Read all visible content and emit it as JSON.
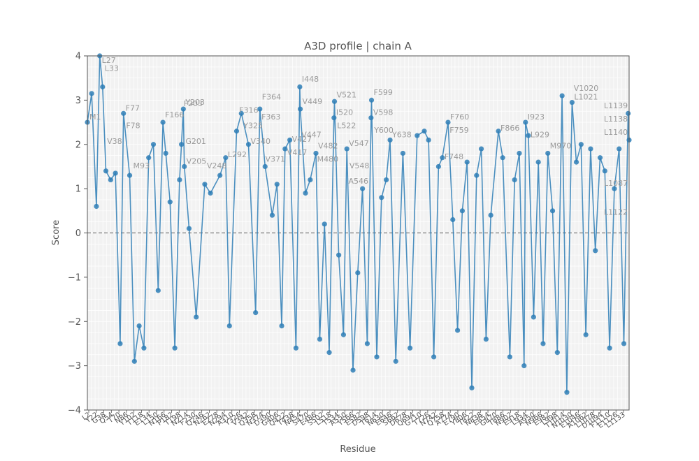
{
  "chart_data": {
    "type": "line",
    "title": "A3D profile | chain A",
    "xlabel": "Residue",
    "ylabel": "Score",
    "ylim": [
      -4,
      4
    ],
    "yticks": [
      -4,
      -3,
      -2,
      -1,
      0,
      1,
      2,
      3,
      4
    ],
    "xlim": [
      1,
      1141
    ],
    "grid": true,
    "reference_line": 0,
    "colors": {
      "series": "#2e7eb6",
      "plot_bg": "#f2f2f2",
      "label": "#9a9a9a"
    },
    "series": [
      {
        "x": [
          1,
          10,
          20,
          27,
          33,
          40,
          50,
          60,
          70,
          77,
          90,
          100,
          110,
          120,
          130,
          140,
          150,
          160,
          166,
          175,
          185,
          195,
          199,
          203,
          205,
          215,
          230,
          248,
          260,
          280,
          292,
          300,
          315,
          325,
          340,
          355,
          364,
          375,
          390,
          400,
          410,
          417,
          427,
          440,
          448,
          449,
          460,
          470,
          482,
          490,
          500,
          510,
          520,
          521,
          530,
          540,
          547,
          560,
          570,
          580,
          590,
          598,
          599,
          610,
          620,
          630,
          638,
          650,
          665,
          680,
          695,
          710,
          719,
          730,
          740,
          748,
          760,
          770,
          780,
          790,
          800,
          810,
          820,
          830,
          840,
          850,
          866,
          875,
          890,
          900,
          910,
          920,
          923,
          929,
          940,
          950,
          960,
          970,
          980,
          990,
          1000,
          1010,
          1021,
          1030,
          1040,
          1050,
          1060,
          1070,
          1080,
          1090,
          1100,
          1110,
          1120,
          1130,
          1139,
          1141
        ],
        "y": [
          2.5,
          3.15,
          0.6,
          4.0,
          3.3,
          1.4,
          1.2,
          1.35,
          -2.5,
          2.7,
          1.3,
          -2.9,
          -2.1,
          -2.6,
          1.7,
          2.0,
          -1.3,
          2.5,
          1.8,
          0.7,
          -2.6,
          1.2,
          2.0,
          2.8,
          1.5,
          0.1,
          -1.9,
          1.1,
          0.9,
          1.3,
          1.7,
          -2.1,
          2.3,
          2.7,
          2.0,
          -1.8,
          2.8,
          1.5,
          0.4,
          1.1,
          -2.1,
          1.9,
          2.1,
          -2.6,
          3.3,
          2.8,
          0.9,
          1.2,
          1.8,
          -2.4,
          0.2,
          -2.7,
          2.6,
          2.97,
          -0.5,
          -2.3,
          1.9,
          -3.1,
          -0.9,
          1.0,
          -2.5,
          2.6,
          3.0,
          -2.8,
          0.8,
          1.2,
          2.1,
          -2.9,
          1.8,
          -2.6,
          2.2,
          2.3,
          2.1,
          -2.8,
          1.5,
          1.7,
          2.5,
          0.3,
          -2.2,
          0.5,
          1.6,
          -3.5,
          1.3,
          1.9,
          -2.4,
          0.4,
          2.3,
          1.7,
          -2.8,
          1.2,
          1.8,
          -3.0,
          2.5,
          2.2,
          -1.9,
          1.6,
          -2.5,
          1.8,
          0.5,
          -2.7,
          3.1,
          -3.6,
          2.95,
          1.6,
          2.0,
          -2.3,
          1.9,
          -0.4,
          1.7,
          1.4,
          -2.6,
          1.0,
          1.9,
          -2.5,
          2.7,
          2.1
        ]
      }
    ],
    "point_labels": [
      {
        "text": "L27",
        "x": 27,
        "y": 4.0
      },
      {
        "text": "L33",
        "x": 33,
        "y": 3.6
      },
      {
        "text": "M1",
        "x": 1,
        "y": 2.5
      },
      {
        "text": "F77",
        "x": 77,
        "y": 2.7
      },
      {
        "text": "F78",
        "x": 78,
        "y": 2.3
      },
      {
        "text": "V38",
        "x": 38,
        "y": 1.95
      },
      {
        "text": "M93",
        "x": 93,
        "y": 1.4
      },
      {
        "text": "F166",
        "x": 160,
        "y": 2.55
      },
      {
        "text": "F203",
        "x": 199,
        "y": 2.8
      },
      {
        "text": "Y203",
        "x": 203,
        "y": 2.83
      },
      {
        "text": "G201",
        "x": 203,
        "y": 1.95
      },
      {
        "text": "V205",
        "x": 205,
        "y": 1.5
      },
      {
        "text": "V248",
        "x": 248,
        "y": 1.4
      },
      {
        "text": "L292",
        "x": 292,
        "y": 1.65
      },
      {
        "text": "F316",
        "x": 316,
        "y": 2.65
      },
      {
        "text": "F364",
        "x": 364,
        "y": 2.95
      },
      {
        "text": "F363",
        "x": 363,
        "y": 2.5
      },
      {
        "text": "Y325",
        "x": 325,
        "y": 2.3
      },
      {
        "text": "V340",
        "x": 340,
        "y": 1.95
      },
      {
        "text": "V371",
        "x": 371,
        "y": 1.55
      },
      {
        "text": "I448",
        "x": 448,
        "y": 3.35
      },
      {
        "text": "V449",
        "x": 449,
        "y": 2.85
      },
      {
        "text": "V447",
        "x": 447,
        "y": 2.1
      },
      {
        "text": "V427",
        "x": 427,
        "y": 2.0
      },
      {
        "text": "V417",
        "x": 417,
        "y": 1.7
      },
      {
        "text": "V482",
        "x": 482,
        "y": 1.85
      },
      {
        "text": "M480",
        "x": 480,
        "y": 1.55
      },
      {
        "text": "V521",
        "x": 521,
        "y": 3.0
      },
      {
        "text": "I520",
        "x": 520,
        "y": 2.6
      },
      {
        "text": "L522",
        "x": 522,
        "y": 2.3
      },
      {
        "text": "V547",
        "x": 547,
        "y": 1.9
      },
      {
        "text": "V548",
        "x": 548,
        "y": 1.4
      },
      {
        "text": "A546",
        "x": 546,
        "y": 1.05
      },
      {
        "text": "F599",
        "x": 599,
        "y": 3.05
      },
      {
        "text": "V598",
        "x": 598,
        "y": 2.6
      },
      {
        "text": "Y600",
        "x": 600,
        "y": 2.2
      },
      {
        "text": "Y638",
        "x": 638,
        "y": 2.1
      },
      {
        "text": "F760",
        "x": 760,
        "y": 2.5
      },
      {
        "text": "F759",
        "x": 759,
        "y": 2.2
      },
      {
        "text": "F748",
        "x": 748,
        "y": 1.6
      },
      {
        "text": "F866",
        "x": 866,
        "y": 2.25
      },
      {
        "text": "I923",
        "x": 923,
        "y": 2.5
      },
      {
        "text": "L929",
        "x": 929,
        "y": 2.1
      },
      {
        "text": "M970",
        "x": 970,
        "y": 1.85
      },
      {
        "text": "V1020",
        "x": 1020,
        "y": 3.15
      },
      {
        "text": "L1021",
        "x": 1021,
        "y": 2.95
      },
      {
        "text": "L1139",
        "x": 1139,
        "y": 2.75
      },
      {
        "text": "L1138",
        "x": 1138,
        "y": 2.45
      },
      {
        "text": "L1140",
        "x": 1140,
        "y": 2.15
      },
      {
        "text": "L1087",
        "x": 1087,
        "y": 1.0
      },
      {
        "text": "L1122",
        "x": 1122,
        "y": 0.35
      }
    ],
    "x_tick_labels": [
      "L2",
      "Y22",
      "G38",
      "Q54",
      "T70",
      "N86",
      "Y102",
      "T118",
      "E134",
      "L150",
      "N166",
      "P182",
      "T198",
      "N214",
      "F230",
      "Q246",
      "N262",
      "E278",
      "N294",
      "A310",
      "Y326",
      "V342",
      "Q358",
      "N374",
      "D390",
      "G406",
      "Q422",
      "T438",
      "N454",
      "S470",
      "E486",
      "S502",
      "L518",
      "T534",
      "A550",
      "Y566",
      "E582",
      "D598",
      "T614",
      "N630",
      "E646",
      "S662",
      "D678",
      "Q694",
      "G710",
      "T726",
      "N742",
      "Q758",
      "A774",
      "E790",
      "Y806",
      "T822",
      "N838",
      "E854",
      "G870",
      "T886",
      "N902",
      "E918",
      "L934",
      "A950",
      "N966",
      "E982",
      "L998",
      "T1014",
      "N1030",
      "E1046",
      "A1062",
      "L1078",
      "D1094",
      "F1110",
      "E1126",
      "L1133"
    ]
  }
}
